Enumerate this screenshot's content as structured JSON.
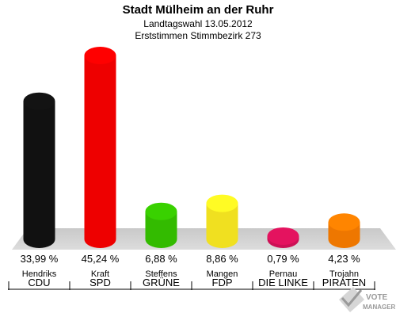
{
  "header": {
    "title": "Stadt Mülheim an der Ruhr",
    "subtitle": "Landtagswahl 13.05.2012",
    "subtitle2": "Erststimmen Stimmbezirk 273"
  },
  "brand": {
    "line1": "VOTE",
    "line2": "MANAGER"
  },
  "chart_data": {
    "type": "bar",
    "title": "Stadt Mülheim an der Ruhr",
    "subtitle": "Landtagswahl 13.05.2012 — Erststimmen Stimmbezirk 273",
    "categories": [
      "CDU",
      "SPD",
      "GRÜNE",
      "FDP",
      "DIE LINKE",
      "PIRATEN"
    ],
    "candidates": [
      "Hendriks",
      "Kraft",
      "Steffens",
      "Mangen",
      "Pernau",
      "Trojahn"
    ],
    "values": [
      33.99,
      45.24,
      6.88,
      8.86,
      0.79,
      4.23
    ],
    "labels": [
      "33,99 %",
      "45,24 %",
      "6,88 %",
      "8,86 %",
      "0,79 %",
      "4,23 %"
    ],
    "colors": [
      "#111111",
      "#ee0000",
      "#33bb00",
      "#f0e020",
      "#cc1155",
      "#ee7700"
    ],
    "ylim": [
      0,
      45.24
    ],
    "grid": false,
    "legend": "none"
  }
}
